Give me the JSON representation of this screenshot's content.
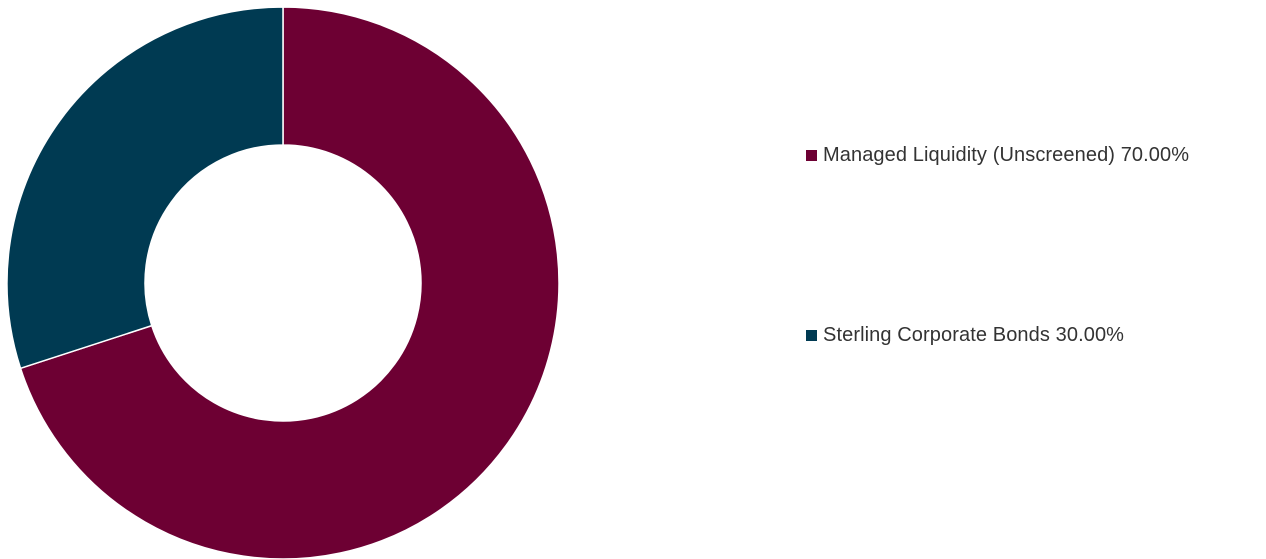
{
  "chart_data": {
    "type": "pie",
    "subtype": "donut",
    "categories": [
      "Managed Liquidity (Unscreened)",
      "Sterling Corporate Bonds"
    ],
    "values": [
      70.0,
      30.0
    ],
    "value_unit": "%",
    "colors": [
      "#6d0033",
      "#003a52"
    ],
    "start": "top",
    "direction": "clockwise",
    "legend_position": "right",
    "legend": [
      {
        "label": "Managed Liquidity (Unscreened) 70.00%",
        "color": "#6d0033"
      },
      {
        "label": "Sterling Corporate Bonds 30.00%",
        "color": "#003a52"
      }
    ]
  }
}
